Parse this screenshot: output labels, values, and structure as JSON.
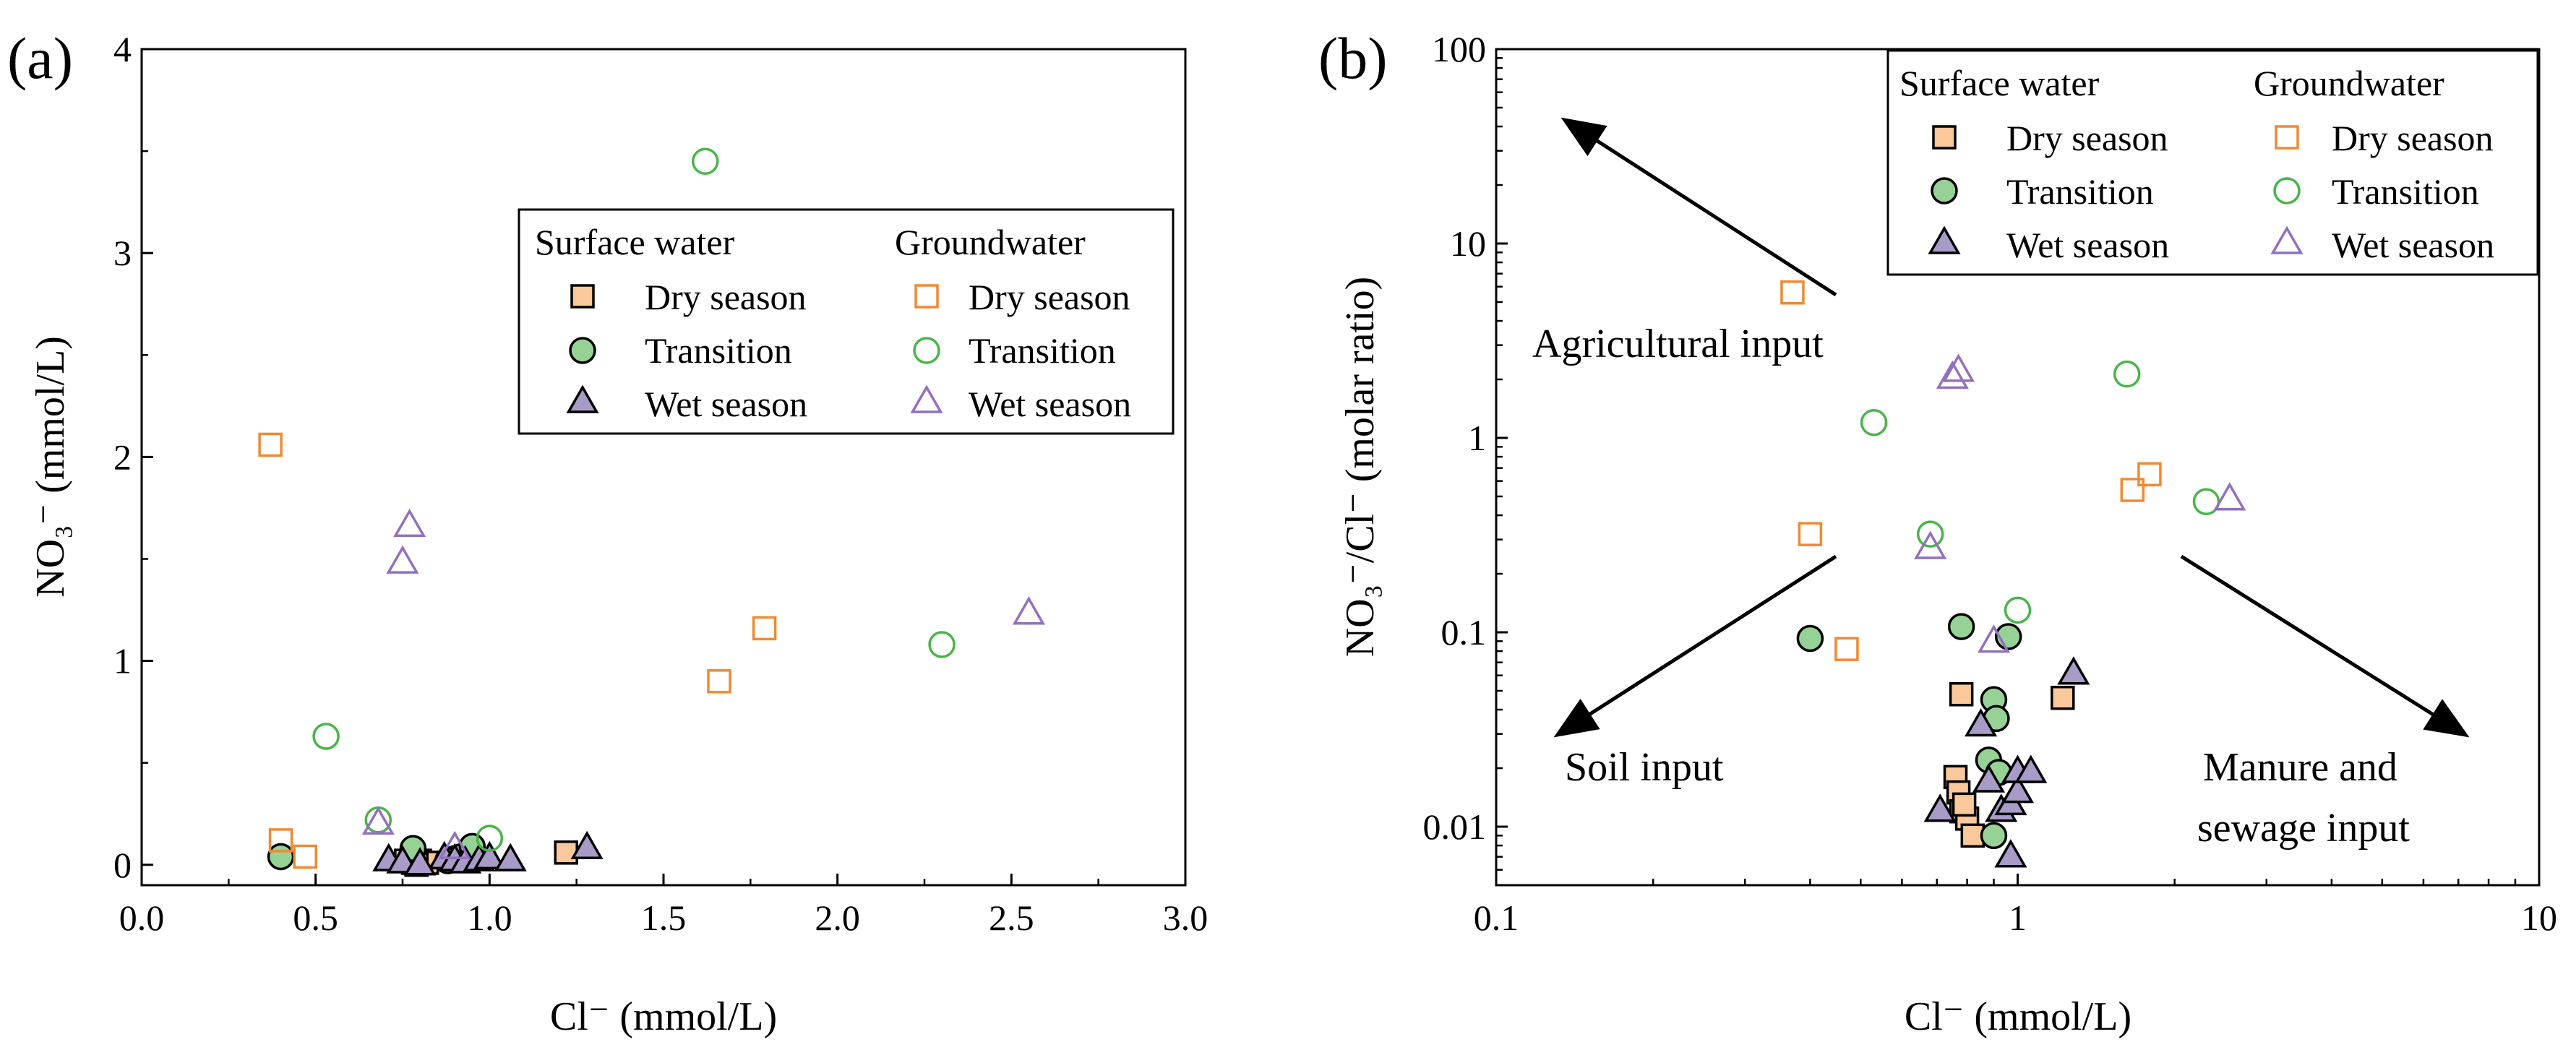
{
  "colors": {
    "sw_dry": "#F9C89B",
    "sw_transition": "#96D295",
    "sw_wet": "#A99BC8",
    "gw_dry": "#F08A32",
    "gw_transition": "#48B548",
    "gw_wet": "#9270BE",
    "outline": "#000000"
  },
  "legend": {
    "surface_water": "Surface water",
    "groundwater": "Groundwater",
    "dry": "Dry season",
    "transition": "Transition",
    "wet": "Wet season"
  },
  "chart_data": [
    {
      "type": "scatter",
      "panel_label": "(a)",
      "xlabel": "Cl⁻ (mmol/L)",
      "ylabel": "NO₃⁻ (mmol/L)",
      "xlim": [
        0,
        3
      ],
      "ylim": [
        -0.1,
        4
      ],
      "xticks": [
        "0.0",
        "0.5",
        "1.0",
        "1.5",
        "2.0",
        "2.5",
        "3.0"
      ],
      "yticks": [
        "0",
        "1",
        "2",
        "3",
        "4"
      ],
      "legend_position": "upper-right",
      "series": [
        {
          "name": "Surface water - Dry season",
          "group": "sw",
          "season": "dry",
          "marker": "square",
          "points": [
            [
              0.76,
              0.02
            ],
            [
              0.78,
              0.01
            ],
            [
              0.8,
              0.02
            ],
            [
              0.82,
              0.01
            ],
            [
              0.79,
              0.0
            ],
            [
              1.22,
              0.06
            ]
          ]
        },
        {
          "name": "Surface water - Transition",
          "group": "sw",
          "season": "transition",
          "marker": "circle",
          "points": [
            [
              0.4,
              0.04
            ],
            [
              0.78,
              0.08
            ],
            [
              0.9,
              0.03
            ],
            [
              0.92,
              0.04
            ],
            [
              0.95,
              0.09
            ],
            [
              0.88,
              0.02
            ]
          ]
        },
        {
          "name": "Surface water - Wet season",
          "group": "sw",
          "season": "wet",
          "marker": "triangle",
          "points": [
            [
              0.71,
              0.02
            ],
            [
              0.75,
              0.01
            ],
            [
              0.87,
              0.03
            ],
            [
              0.9,
              0.02
            ],
            [
              0.93,
              0.01
            ],
            [
              0.97,
              0.02
            ],
            [
              1.0,
              0.03
            ],
            [
              1.06,
              0.02
            ],
            [
              1.28,
              0.08
            ],
            [
              0.8,
              0.0
            ]
          ]
        },
        {
          "name": "Groundwater - Dry season",
          "group": "gw",
          "season": "dry",
          "marker": "square",
          "points": [
            [
              0.37,
              2.06
            ],
            [
              0.4,
              0.12
            ],
            [
              0.47,
              0.04
            ],
            [
              1.66,
              0.9
            ],
            [
              1.79,
              1.16
            ]
          ]
        },
        {
          "name": "Groundwater - Transition",
          "group": "gw",
          "season": "transition",
          "marker": "circle",
          "points": [
            [
              0.53,
              0.63
            ],
            [
              0.68,
              0.22
            ],
            [
              1.0,
              0.13
            ],
            [
              1.62,
              3.45
            ],
            [
              2.3,
              1.08
            ]
          ]
        },
        {
          "name": "Groundwater - Wet season",
          "group": "gw",
          "season": "wet",
          "marker": "triangle",
          "points": [
            [
              0.68,
              0.2
            ],
            [
              0.75,
              1.48
            ],
            [
              0.77,
              1.66
            ],
            [
              0.9,
              0.08
            ],
            [
              2.55,
              1.23
            ]
          ]
        }
      ]
    },
    {
      "type": "scatter",
      "panel_label": "(b)",
      "xlabel": "Cl⁻ (mmol/L)",
      "ylabel": "NO₃⁻/Cl⁻ (molar ratio)",
      "xscale": "log",
      "yscale": "log",
      "xlim": [
        0.1,
        10
      ],
      "ylim": [
        0.005,
        100
      ],
      "xticks": [
        "0.1",
        "1",
        "10"
      ],
      "yticks": [
        "0.01",
        "0.1",
        "1",
        "10",
        "100"
      ],
      "legend_position": "upper-right",
      "annotations": [
        "Agricultural input",
        "Soil input",
        "Manure and",
        "sewage input"
      ],
      "series": [
        {
          "name": "Surface water - Dry season",
          "group": "sw",
          "season": "dry",
          "marker": "square",
          "points": [
            [
              0.76,
              0.018
            ],
            [
              0.77,
              0.015
            ],
            [
              0.78,
              0.048
            ],
            [
              0.78,
              0.012
            ],
            [
              0.8,
              0.011
            ],
            [
              0.82,
              0.009
            ],
            [
              0.79,
              0.013
            ],
            [
              1.22,
              0.046
            ]
          ]
        },
        {
          "name": "Surface water - Transition",
          "group": "sw",
          "season": "transition",
          "marker": "circle",
          "points": [
            [
              0.4,
              0.093
            ],
            [
              0.78,
              0.107
            ],
            [
              0.9,
              0.045
            ],
            [
              0.91,
              0.036
            ],
            [
              0.96,
              0.095
            ],
            [
              0.88,
              0.022
            ],
            [
              0.92,
              0.019
            ],
            [
              0.9,
              0.009
            ]
          ]
        },
        {
          "name": "Surface water - Wet season",
          "group": "sw",
          "season": "wet",
          "marker": "triangle",
          "points": [
            [
              0.71,
              0.012
            ],
            [
              0.85,
              0.033
            ],
            [
              0.88,
              0.017
            ],
            [
              0.93,
              0.012
            ],
            [
              0.97,
              0.013
            ],
            [
              1.0,
              0.015
            ],
            [
              1.0,
              0.019
            ],
            [
              1.06,
              0.019
            ],
            [
              0.97,
              0.007
            ],
            [
              1.28,
              0.061
            ]
          ]
        },
        {
          "name": "Groundwater - Dry season",
          "group": "gw",
          "season": "dry",
          "marker": "square",
          "points": [
            [
              0.37,
              5.6
            ],
            [
              0.4,
              0.32
            ],
            [
              0.47,
              0.082
            ],
            [
              1.66,
              0.54
            ],
            [
              1.79,
              0.65
            ]
          ]
        },
        {
          "name": "Groundwater - Transition",
          "group": "gw",
          "season": "transition",
          "marker": "circle",
          "points": [
            [
              0.53,
              1.2
            ],
            [
              0.68,
              0.32
            ],
            [
              1.0,
              0.13
            ],
            [
              1.62,
              2.13
            ],
            [
              2.3,
              0.47
            ]
          ]
        },
        {
          "name": "Groundwater - Wet season",
          "group": "gw",
          "season": "wet",
          "marker": "triangle",
          "points": [
            [
              0.68,
              0.27
            ],
            [
              0.75,
              2.03
            ],
            [
              0.77,
              2.2
            ],
            [
              0.9,
              0.089
            ],
            [
              2.55,
              0.48
            ]
          ]
        }
      ]
    }
  ]
}
